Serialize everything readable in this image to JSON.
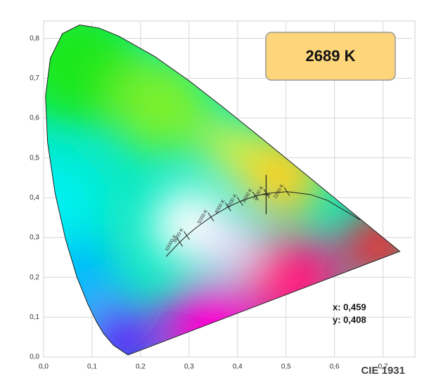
{
  "chart_data": {
    "type": "scatter",
    "badge": "2689 K",
    "caption": "CIE 1931",
    "x": [
      0.459
    ],
    "values": [
      0.408
    ],
    "x_label": "x: 0,459",
    "y_label": "y: 0,408",
    "color": "#222222",
    "xlim": [
      0,
      0.76
    ],
    "ylim": [
      0,
      0.84
    ],
    "xticks": [
      {
        "value": 0,
        "label": "0,0"
      },
      {
        "value": 0.1,
        "label": "0,1"
      },
      {
        "value": 0.2,
        "label": "0,2"
      },
      {
        "value": 0.3,
        "label": "0,3"
      },
      {
        "value": 0.4,
        "label": "0,4"
      },
      {
        "value": 0.5,
        "label": "0,5"
      },
      {
        "value": 0.6,
        "label": "0,6"
      },
      {
        "value": 0.7,
        "label": "0,7"
      }
    ],
    "yticks": [
      {
        "value": 0,
        "label": "0,0"
      },
      {
        "value": 0.1,
        "label": "0,1"
      },
      {
        "value": 0.2,
        "label": "0,2"
      },
      {
        "value": 0.3,
        "label": "0,3"
      },
      {
        "value": 0.4,
        "label": "0,4"
      },
      {
        "value": 0.5,
        "label": "0,5"
      },
      {
        "value": 0.6,
        "label": "0,6"
      },
      {
        "value": 0.7,
        "label": "0,7"
      },
      {
        "value": 0.8,
        "label": "0,8"
      }
    ],
    "grid": true,
    "planckian_labels": [
      "10000 K",
      "8000 K",
      "5000 K",
      "4000 K",
      "3500 K",
      "3000 K",
      "2700 K",
      "2200 K"
    ]
  }
}
